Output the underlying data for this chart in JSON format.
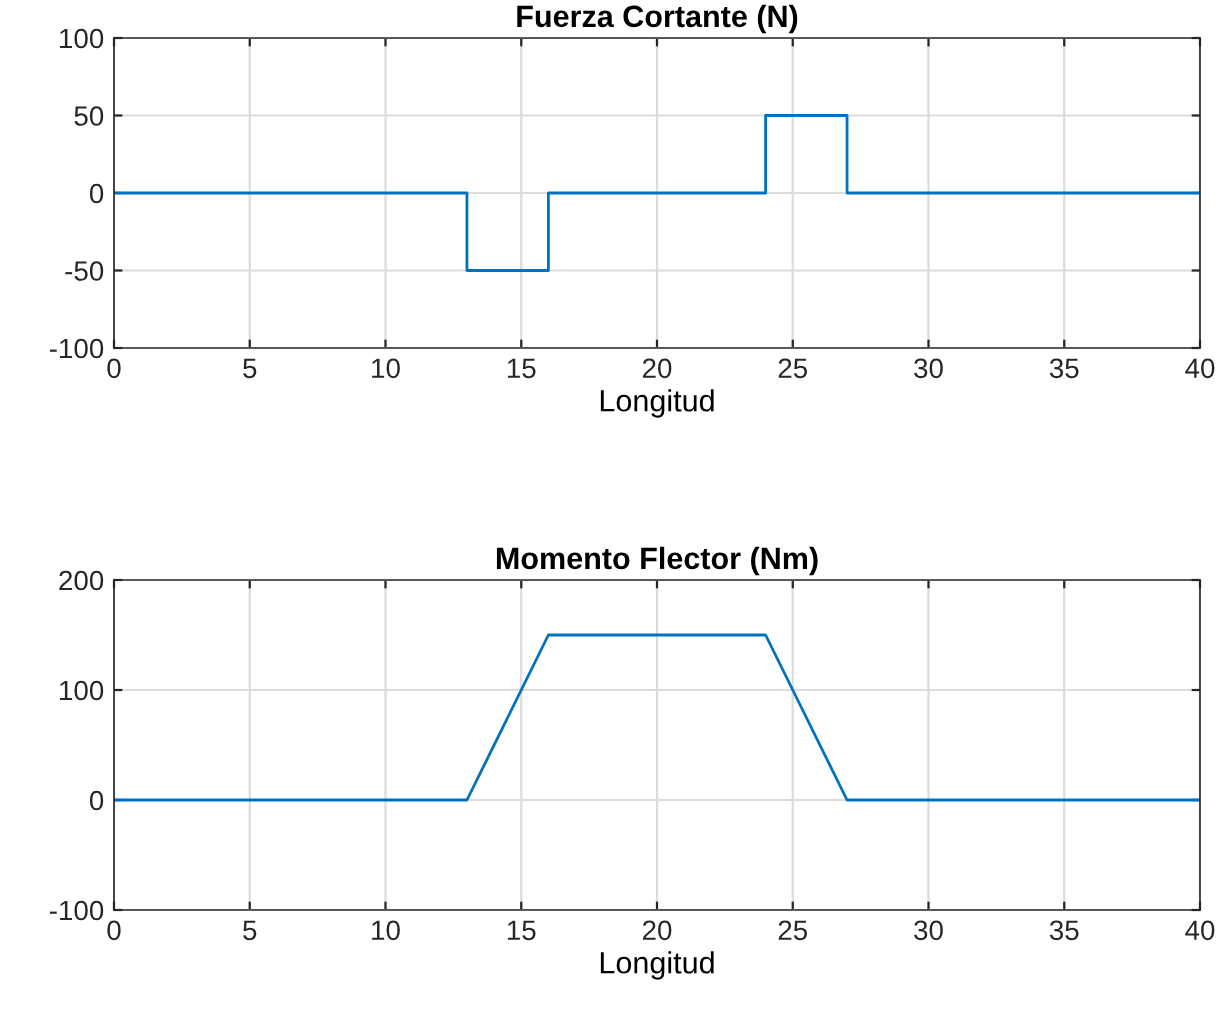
{
  "chart_data": [
    {
      "type": "line",
      "title": "Fuerza Cortante (N)",
      "xlabel": "Longitud",
      "x": [
        0,
        13,
        13,
        16,
        16,
        24,
        24,
        27,
        27,
        40
      ],
      "series": [
        {
          "color": "#0072bd",
          "values": [
            0,
            0,
            -50,
            -50,
            0,
            0,
            50,
            50,
            0,
            0
          ]
        }
      ],
      "xlim": [
        0,
        40
      ],
      "xticks": [
        0,
        5,
        10,
        15,
        20,
        25,
        30,
        35,
        40
      ],
      "ylim": [
        -100,
        100
      ],
      "yticks": [
        -100,
        -50,
        0,
        50,
        100
      ],
      "grid": true
    },
    {
      "type": "line",
      "title": "Momento Flector (Nm)",
      "xlabel": "Longitud",
      "x": [
        0,
        13,
        16,
        24,
        27,
        40
      ],
      "series": [
        {
          "color": "#0072bd",
          "values": [
            0,
            0,
            150,
            150,
            0,
            0
          ]
        }
      ],
      "xlim": [
        0,
        40
      ],
      "xticks": [
        0,
        5,
        10,
        15,
        20,
        25,
        30,
        35,
        40
      ],
      "ylim": [
        -100,
        200
      ],
      "yticks": [
        -100,
        0,
        100,
        200
      ],
      "grid": true
    }
  ]
}
